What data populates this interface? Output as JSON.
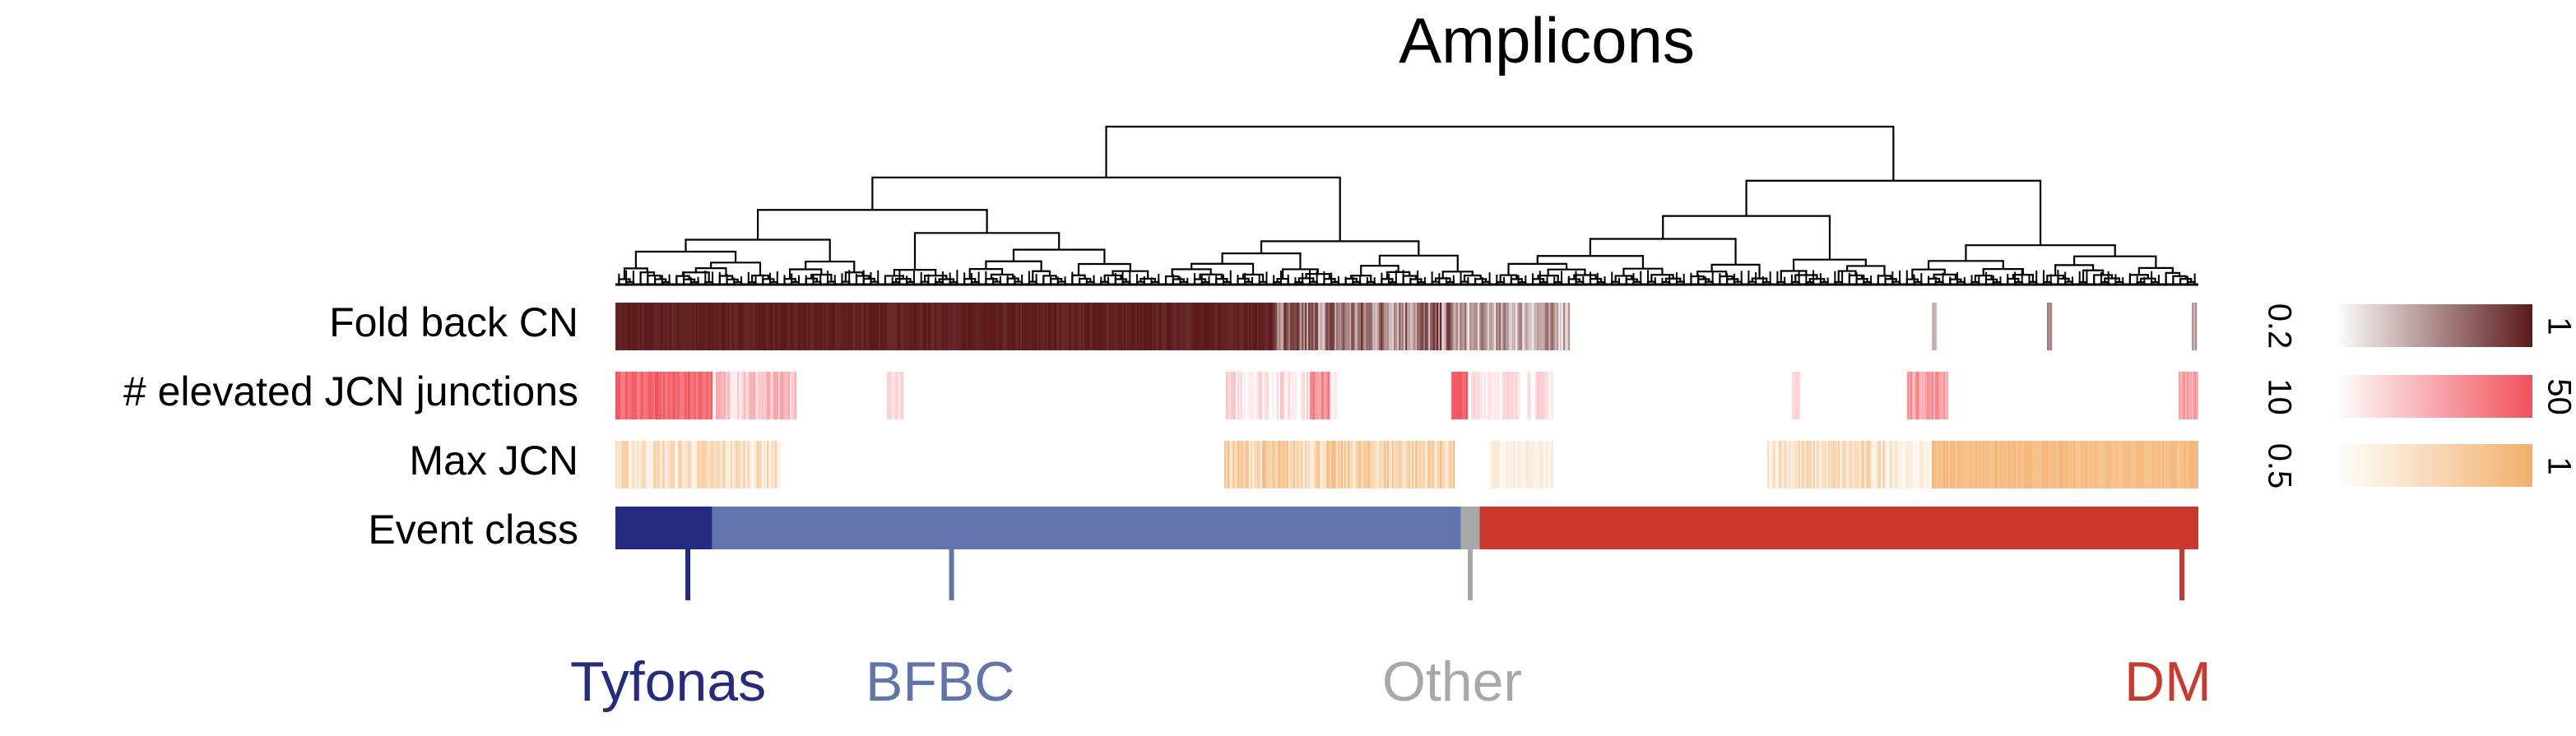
{
  "chart_data": {
    "type": "heatmap",
    "title": "Amplicons",
    "rows": [
      {
        "label": "Fold back CN",
        "color": "#5c1a1a",
        "legend_min": "0.2",
        "legend_max": "1"
      },
      {
        "label": "# elevated JCN junctions",
        "color": "#f0525b",
        "legend_min": "10",
        "legend_max": "50"
      },
      {
        "label": "Max JCN",
        "color": "#f2b06c",
        "legend_min": "0.5",
        "legend_max": "1"
      },
      {
        "label": "Event class"
      }
    ],
    "event_classes": [
      {
        "name": "Tyfonas",
        "color": "#262b82",
        "fraction": 0.061
      },
      {
        "name": "BFBC",
        "color": "#6174ac",
        "fraction": 0.473
      },
      {
        "name": "Other",
        "color": "#a8a8a8",
        "fraction": 0.012
      },
      {
        "name": "DM",
        "color": "#cc382c",
        "fraction": 0.454
      }
    ],
    "dendrogram": true,
    "legend_placement": "right"
  }
}
